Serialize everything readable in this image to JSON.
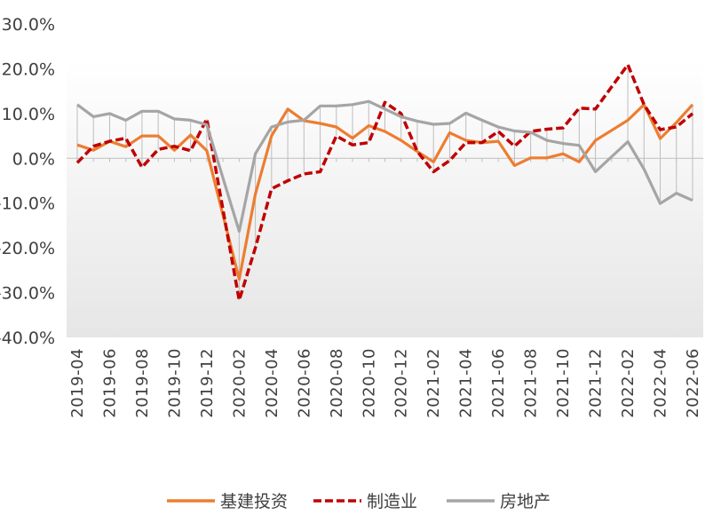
{
  "chart_data": {
    "type": "line",
    "title": "",
    "xlabel": "",
    "ylabel": "",
    "ylim": [
      -40,
      30
    ],
    "y_ticks": [
      "30.0%",
      "20.0%",
      "10.0%",
      "0.0%",
      "-10.0%",
      "-20.0%",
      "-30.0%",
      "-40.0%"
    ],
    "y_tick_values": [
      30,
      20,
      10,
      0,
      -10,
      -20,
      -30,
      -40
    ],
    "x": [
      "2019-04",
      "2019-05",
      "2019-06",
      "2019-07",
      "2019-08",
      "2019-09",
      "2019-10",
      "2019-11",
      "2019-12",
      "2020-01",
      "2020-02",
      "2020-03",
      "2020-04",
      "2020-05",
      "2020-06",
      "2020-07",
      "2020-08",
      "2020-09",
      "2020-10",
      "2020-11",
      "2020-12",
      "2021-01",
      "2021-02",
      "2021-03",
      "2021-04",
      "2021-05",
      "2021-06",
      "2021-07",
      "2021-08",
      "2021-09",
      "2021-10",
      "2021-11",
      "2021-12",
      "2022-01",
      "2022-02",
      "2022-03",
      "2022-04",
      "2022-05",
      "2022-06"
    ],
    "x_tick_labels": [
      "2019-04",
      "2019-06",
      "2019-08",
      "2019-10",
      "2019-12",
      "2020-02",
      "2020-04",
      "2020-06",
      "2020-08",
      "2020-10",
      "2020-12",
      "2021-02",
      "2021-04",
      "2021-06",
      "2021-08",
      "2021-10",
      "2021-12",
      "2022-02",
      "2022-04",
      "2022-06"
    ],
    "series": [
      {
        "name": "基建投资",
        "color": "#ED7D31",
        "dash": "solid",
        "values": [
          3.0,
          1.8,
          3.8,
          2.6,
          5.0,
          5.0,
          1.8,
          5.2,
          1.7,
          null,
          -27.0,
          -8.0,
          5.0,
          11.0,
          8.4,
          7.8,
          7.0,
          4.5,
          7.3,
          6.0,
          4.0,
          1.5,
          -0.8,
          5.7,
          4.0,
          3.5,
          3.8,
          -1.6,
          0.1,
          0.1,
          1.0,
          -0.8,
          4.0,
          null,
          8.5,
          12.0,
          4.4,
          8.0,
          12.0
        ]
      },
      {
        "name": "制造业",
        "color": "#C00000",
        "dash": "dashed",
        "values": [
          -1.0,
          2.7,
          3.8,
          4.5,
          -2.0,
          2.0,
          2.7,
          1.7,
          8.8,
          null,
          -31.7,
          -20.0,
          -6.8,
          -5.0,
          -3.5,
          -3.0,
          5.0,
          3.0,
          3.5,
          12.5,
          10.0,
          1.5,
          -3.0,
          -0.5,
          3.5,
          3.5,
          6.0,
          2.7,
          6.0,
          6.5,
          6.8,
          11.2,
          11.0,
          null,
          20.9,
          12.0,
          6.4,
          7.0,
          10.0
        ]
      },
      {
        "name": "房地产",
        "color": "#A5A5A5",
        "dash": "solid",
        "values": [
          12.0,
          9.3,
          10.0,
          8.5,
          10.5,
          10.5,
          8.8,
          8.5,
          7.5,
          null,
          -16.3,
          1.0,
          7.0,
          8.1,
          8.5,
          11.7,
          11.7,
          12.0,
          12.7,
          11.0,
          9.3,
          8.3,
          7.6,
          7.8,
          10.1,
          8.5,
          7.0,
          6.1,
          5.8,
          4.0,
          3.3,
          2.9,
          -3.0,
          null,
          3.7,
          -2.4,
          -10.1,
          -7.8,
          -9.4
        ]
      }
    ],
    "grid": false,
    "drop_lines": true,
    "plot_area_gradient": true,
    "legend_position": "bottom"
  }
}
